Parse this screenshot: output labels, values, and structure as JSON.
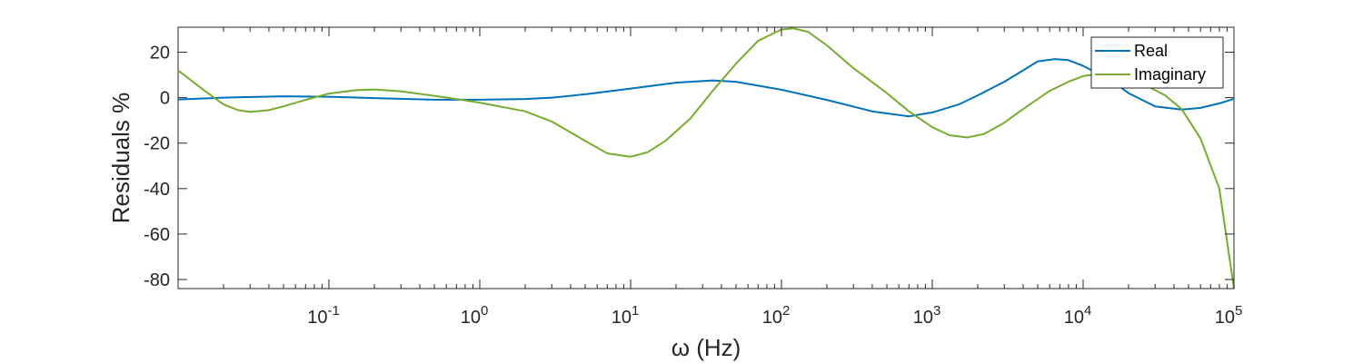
{
  "chart_data": {
    "type": "line",
    "title": "",
    "xlabel": "ω (Hz)",
    "ylabel": "Residuals %",
    "xscale": "log",
    "xlim": [
      0.01,
      100000
    ],
    "ylim": [
      -84,
      31
    ],
    "x_tick_exponents": [
      "-1",
      "0",
      "1",
      "2",
      "3",
      "4",
      "5"
    ],
    "x_tick_base": "10",
    "y_ticks": [
      "20",
      "0",
      "-20",
      "-40",
      "-60",
      "-80"
    ],
    "grid": false,
    "legend": "top-right",
    "series": [
      {
        "name": "Real",
        "color": "#0072BD",
        "points": [
          [
            0.01,
            -0.8
          ],
          [
            0.02,
            0.0
          ],
          [
            0.05,
            0.6
          ],
          [
            0.1,
            0.4
          ],
          [
            0.2,
            -0.2
          ],
          [
            0.5,
            -0.9
          ],
          [
            1,
            -0.9
          ],
          [
            2,
            -0.6
          ],
          [
            3,
            0.0
          ],
          [
            5,
            1.5
          ],
          [
            10,
            4.0
          ],
          [
            20,
            6.6
          ],
          [
            35,
            7.6
          ],
          [
            50,
            7.0
          ],
          [
            100,
            3.5
          ],
          [
            200,
            -1.0
          ],
          [
            400,
            -6.0
          ],
          [
            700,
            -8.2
          ],
          [
            1000,
            -6.5
          ],
          [
            1500,
            -3.0
          ],
          [
            2000,
            1.0
          ],
          [
            3000,
            7.0
          ],
          [
            4000,
            12.0
          ],
          [
            5000,
            16.0
          ],
          [
            6500,
            17.0
          ],
          [
            8000,
            16.5
          ],
          [
            10000,
            14.0
          ],
          [
            15000,
            8.0
          ],
          [
            20000,
            2.0
          ],
          [
            30000,
            -3.8
          ],
          [
            45000,
            -5.2
          ],
          [
            60000,
            -4.5
          ],
          [
            80000,
            -2.5
          ],
          [
            100000,
            -0.5
          ]
        ]
      },
      {
        "name": "Imaginary",
        "color": "#77AC30",
        "points": [
          [
            0.01,
            12.0
          ],
          [
            0.012,
            8.0
          ],
          [
            0.015,
            3.0
          ],
          [
            0.02,
            -3.0
          ],
          [
            0.025,
            -5.5
          ],
          [
            0.03,
            -6.3
          ],
          [
            0.04,
            -5.5
          ],
          [
            0.05,
            -3.8
          ],
          [
            0.07,
            -1.0
          ],
          [
            0.1,
            1.8
          ],
          [
            0.15,
            3.3
          ],
          [
            0.2,
            3.6
          ],
          [
            0.3,
            2.8
          ],
          [
            0.5,
            0.8
          ],
          [
            0.8,
            -1.2
          ],
          [
            1,
            -2.2
          ],
          [
            2,
            -6.0
          ],
          [
            3,
            -10.5
          ],
          [
            5,
            -19.0
          ],
          [
            7,
            -24.5
          ],
          [
            10,
            -26.0
          ],
          [
            13,
            -24.0
          ],
          [
            17,
            -19.0
          ],
          [
            25,
            -9.0
          ],
          [
            35,
            3.0
          ],
          [
            50,
            15.0
          ],
          [
            70,
            25.0
          ],
          [
            100,
            30.0
          ],
          [
            120,
            30.5
          ],
          [
            150,
            29.0
          ],
          [
            200,
            23.0
          ],
          [
            300,
            13.0
          ],
          [
            500,
            2.0
          ],
          [
            700,
            -6.0
          ],
          [
            1000,
            -13.0
          ],
          [
            1300,
            -16.5
          ],
          [
            1700,
            -17.5
          ],
          [
            2200,
            -16.0
          ],
          [
            3000,
            -11.0
          ],
          [
            4000,
            -5.0
          ],
          [
            6000,
            3.0
          ],
          [
            8000,
            7.0
          ],
          [
            10000,
            9.5
          ],
          [
            13000,
            10.5
          ],
          [
            17000,
            9.5
          ],
          [
            25000,
            6.0
          ],
          [
            35000,
            1.0
          ],
          [
            45000,
            -5.0
          ],
          [
            60000,
            -18.0
          ],
          [
            80000,
            -40.0
          ],
          [
            100000,
            -84.0
          ]
        ]
      }
    ]
  }
}
